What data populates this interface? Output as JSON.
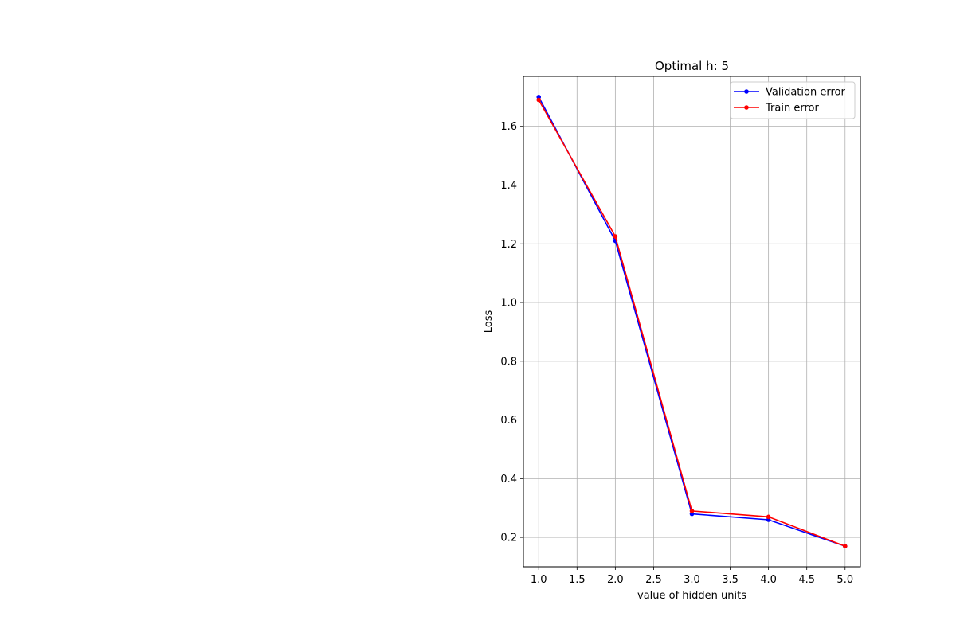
{
  "chart_data": {
    "type": "line",
    "title": "Optimal h: 5",
    "xlabel": "value of hidden units",
    "ylabel": "Loss",
    "x": [
      1,
      2,
      3,
      4,
      5
    ],
    "xlim": [
      0.8,
      5.2
    ],
    "ylim": [
      0.1,
      1.77
    ],
    "xticks": [
      1.0,
      1.5,
      2.0,
      2.5,
      3.0,
      3.5,
      4.0,
      4.5,
      5.0
    ],
    "xtick_labels": [
      "1.0",
      "1.5",
      "2.0",
      "2.5",
      "3.0",
      "3.5",
      "4.0",
      "4.5",
      "5.0"
    ],
    "yticks": [
      0.2,
      0.4,
      0.6,
      0.8,
      1.0,
      1.2,
      1.4,
      1.6
    ],
    "ytick_labels": [
      "0.2",
      "0.4",
      "0.6",
      "0.8",
      "1.0",
      "1.2",
      "1.4",
      "1.6"
    ],
    "grid": true,
    "legend_position": "top-right",
    "series": [
      {
        "name": "Validation error",
        "color": "#0000ff",
        "values": [
          1.7,
          1.21,
          0.28,
          0.26,
          0.17
        ]
      },
      {
        "name": "Train error",
        "color": "#ff0000",
        "values": [
          1.69,
          1.225,
          0.29,
          0.27,
          0.17
        ]
      }
    ]
  }
}
